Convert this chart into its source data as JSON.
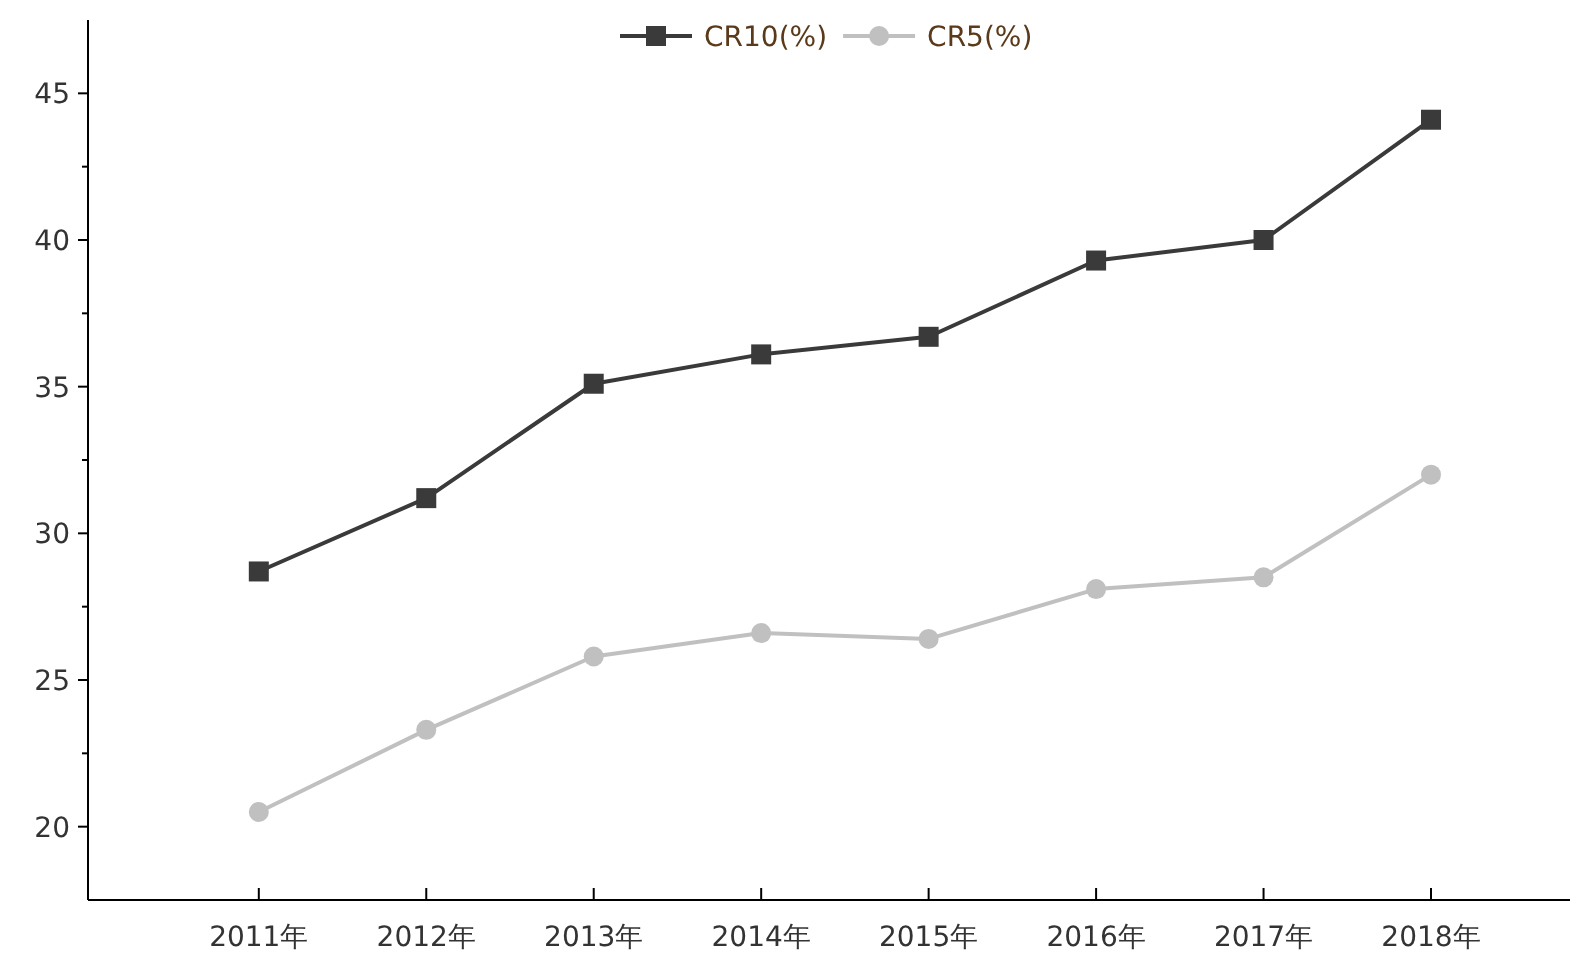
{
  "chart_data": {
    "type": "line",
    "categories": [
      "2011年",
      "2012年",
      "2013年",
      "2014年",
      "2015年",
      "2016年",
      "2017年",
      "2018年"
    ],
    "series": [
      {
        "name": "CR10(%)",
        "color": "#3a3a3a",
        "marker": "square",
        "values": [
          28.7,
          31.2,
          35.1,
          36.1,
          36.7,
          39.3,
          40.0,
          44.1
        ]
      },
      {
        "name": "CR5(%)",
        "color": "#c0c0c0",
        "marker": "circle",
        "values": [
          20.5,
          23.3,
          25.8,
          26.6,
          26.4,
          28.1,
          28.5,
          32.0
        ]
      }
    ],
    "ylim": [
      17.5,
      47.5
    ],
    "yticks": [
      20,
      {
        "value": 22.5,
        "label": null
      },
      25,
      {
        "value": 27.5,
        "label": null
      },
      30,
      {
        "value": 32.5,
        "label": null
      },
      35,
      {
        "value": 37.5,
        "label": null
      },
      40,
      {
        "value": 42.5,
        "label": null
      },
      45
    ],
    "grid": false,
    "legend": "top",
    "line_style": "solid"
  }
}
